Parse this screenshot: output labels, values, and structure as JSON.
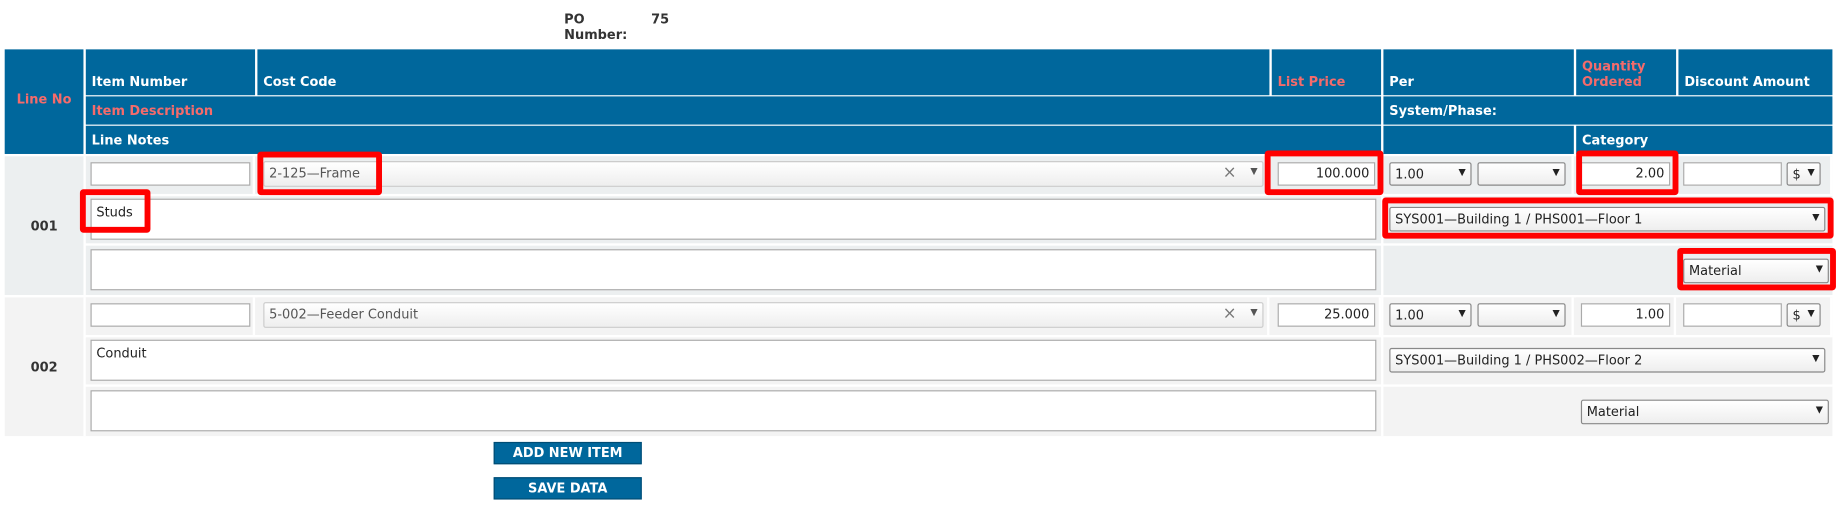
{
  "header": {
    "po_label": "PO Number:",
    "po_value": "75"
  },
  "columns": {
    "line_no": "Line No",
    "item_number": "Item Number",
    "cost_code": "Cost Code",
    "list_price": "List Price",
    "per": "Per",
    "quantity_ordered": "Quantity Ordered",
    "discount_amount": "Discount Amount",
    "item_description": "Item Description",
    "system_phase": "System/Phase:",
    "line_notes": "Line Notes",
    "category": "Category"
  },
  "rows": [
    {
      "line_no": "001",
      "cost_code": "2-125—Frame",
      "list_price": "100.000",
      "per": "1.00",
      "quantity": "2.00",
      "discount_unit": "$",
      "description": "Studs",
      "system_phase": "SYS001—Building 1 / PHS001—Floor 1",
      "category": "Material"
    },
    {
      "line_no": "002",
      "cost_code": "5-002—Feeder Conduit",
      "list_price": "25.000",
      "per": "1.00",
      "quantity": "1.00",
      "discount_unit": "$",
      "description": "Conduit",
      "system_phase": "SYS001—Building 1 / PHS002—Floor 2",
      "category": "Material"
    }
  ],
  "buttons": {
    "add": "ADD NEW ITEM",
    "save": "SAVE DATA"
  }
}
